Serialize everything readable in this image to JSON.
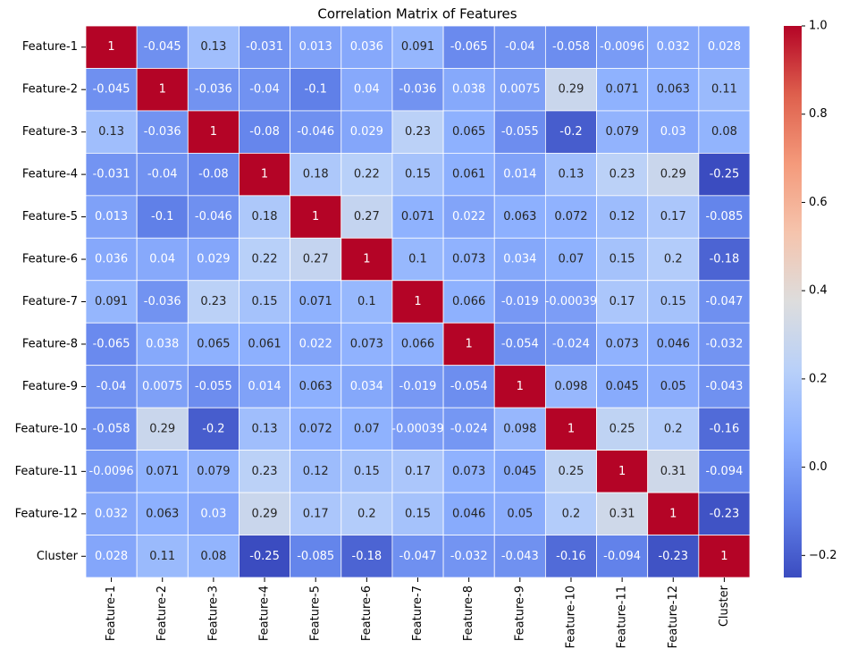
{
  "chart_data": {
    "type": "heatmap",
    "title": "Correlation Matrix of Features",
    "categories": [
      "Feature-1",
      "Feature-2",
      "Feature-3",
      "Feature-4",
      "Feature-5",
      "Feature-6",
      "Feature-7",
      "Feature-8",
      "Feature-9",
      "Feature-10",
      "Feature-11",
      "Feature-12",
      "Cluster"
    ],
    "values": [
      [
        1,
        -0.045,
        0.13,
        -0.031,
        0.013,
        0.036,
        0.091,
        -0.065,
        -0.04,
        -0.058,
        -0.0096,
        0.032,
        0.028
      ],
      [
        -0.045,
        1,
        -0.036,
        -0.04,
        -0.1,
        0.04,
        -0.036,
        0.038,
        0.0075,
        0.29,
        0.071,
        0.063,
        0.11
      ],
      [
        0.13,
        -0.036,
        1,
        -0.08,
        -0.046,
        0.029,
        0.23,
        0.065,
        -0.055,
        -0.2,
        0.079,
        0.03,
        0.08
      ],
      [
        -0.031,
        -0.04,
        -0.08,
        1,
        0.18,
        0.22,
        0.15,
        0.061,
        0.014,
        0.13,
        0.23,
        0.29,
        -0.25
      ],
      [
        0.013,
        -0.1,
        -0.046,
        0.18,
        1,
        0.27,
        0.071,
        0.022,
        0.063,
        0.072,
        0.12,
        0.17,
        -0.085
      ],
      [
        0.036,
        0.04,
        0.029,
        0.22,
        0.27,
        1,
        0.1,
        0.073,
        0.034,
        0.07,
        0.15,
        0.2,
        -0.18
      ],
      [
        0.091,
        -0.036,
        0.23,
        0.15,
        0.071,
        0.1,
        1,
        0.066,
        -0.019,
        -0.00039,
        0.17,
        0.15,
        -0.047
      ],
      [
        -0.065,
        0.038,
        0.065,
        0.061,
        0.022,
        0.073,
        0.066,
        1,
        -0.054,
        -0.024,
        0.073,
        0.046,
        -0.032
      ],
      [
        -0.04,
        0.0075,
        -0.055,
        0.014,
        0.063,
        0.034,
        -0.019,
        -0.054,
        1,
        0.098,
        0.045,
        0.05,
        -0.043
      ],
      [
        -0.058,
        0.29,
        -0.2,
        0.13,
        0.072,
        0.07,
        -0.00039,
        -0.024,
        0.098,
        1,
        0.25,
        0.2,
        -0.16
      ],
      [
        -0.0096,
        0.071,
        0.079,
        0.23,
        0.12,
        0.15,
        0.17,
        0.073,
        0.045,
        0.25,
        1,
        0.31,
        -0.094
      ],
      [
        0.032,
        0.063,
        0.03,
        0.29,
        0.17,
        0.2,
        0.15,
        0.046,
        0.05,
        0.2,
        0.31,
        1,
        -0.23
      ],
      [
        0.028,
        0.11,
        0.08,
        -0.25,
        -0.085,
        -0.18,
        -0.047,
        -0.032,
        -0.043,
        -0.16,
        -0.094,
        -0.23,
        1
      ]
    ],
    "colormap": [
      "#3b4cc0",
      "#6282ea",
      "#8db0fe",
      "#b8d0f9",
      "#dddddd",
      "#f5c4ad",
      "#f49a7b",
      "#de604d",
      "#b40426"
    ],
    "clim": [
      -0.25,
      1
    ],
    "cticks": [
      {
        "value": -0.2,
        "label": "−0.2"
      },
      {
        "value": 0,
        "label": "0.0"
      },
      {
        "value": 0.2,
        "label": "0.2"
      },
      {
        "value": 0.4,
        "label": "0.4"
      },
      {
        "value": 0.6,
        "label": "0.6"
      },
      {
        "value": 0.8,
        "label": "0.8"
      },
      {
        "value": 1,
        "label": "1.0"
      }
    ],
    "annotate": true
  }
}
